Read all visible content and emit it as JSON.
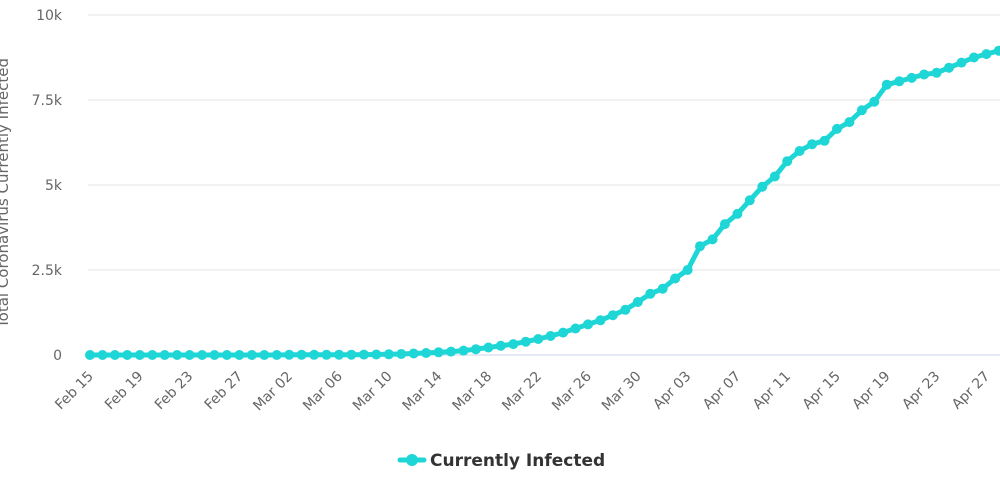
{
  "chart_data": {
    "type": "line",
    "title": "",
    "ylabel": "Total Coronavirus Currently Infected",
    "xlabel": "",
    "ylim": [
      0,
      10000
    ],
    "y_ticks": [
      0,
      2500,
      5000,
      7500,
      10000
    ],
    "y_tick_labels": [
      "0",
      "2.5k",
      "5k",
      "7.5k",
      "10k"
    ],
    "x_start": "Feb 15",
    "x_tick_labels": [
      "Feb 15",
      "Feb 19",
      "Feb 23",
      "Feb 27",
      "Mar 02",
      "Mar 06",
      "Mar 10",
      "Mar 14",
      "Mar 18",
      "Mar 22",
      "Mar 26",
      "Mar 30",
      "Apr 03",
      "Apr 07",
      "Apr 11",
      "Apr 15",
      "Apr 19",
      "Apr 23",
      "Apr 27"
    ],
    "grid": true,
    "legend_position": "bottom-center",
    "series_color": "#1fd6d6",
    "grid_color": "#e6e6e6",
    "axis_color": "#ccd6eb",
    "series": [
      {
        "name": "Currently Infected",
        "x": [
          "Feb 15",
          "Feb 16",
          "Feb 17",
          "Feb 18",
          "Feb 19",
          "Feb 20",
          "Feb 21",
          "Feb 22",
          "Feb 23",
          "Feb 24",
          "Feb 25",
          "Feb 26",
          "Feb 27",
          "Feb 28",
          "Feb 29",
          "Mar 01",
          "Mar 02",
          "Mar 03",
          "Mar 04",
          "Mar 05",
          "Mar 06",
          "Mar 07",
          "Mar 08",
          "Mar 09",
          "Mar 10",
          "Mar 11",
          "Mar 12",
          "Mar 13",
          "Mar 14",
          "Mar 15",
          "Mar 16",
          "Mar 17",
          "Mar 18",
          "Mar 19",
          "Mar 20",
          "Mar 21",
          "Mar 22",
          "Mar 23",
          "Mar 24",
          "Mar 25",
          "Mar 26",
          "Mar 27",
          "Mar 28",
          "Mar 29",
          "Mar 30",
          "Mar 31",
          "Apr 01",
          "Apr 02",
          "Apr 03",
          "Apr 04",
          "Apr 05",
          "Apr 06",
          "Apr 07",
          "Apr 08",
          "Apr 09",
          "Apr 10",
          "Apr 11",
          "Apr 12",
          "Apr 13",
          "Apr 14",
          "Apr 15",
          "Apr 16",
          "Apr 17",
          "Apr 18",
          "Apr 19",
          "Apr 20",
          "Apr 21",
          "Apr 22",
          "Apr 23",
          "Apr 24",
          "Apr 25",
          "Apr 26",
          "Apr 27",
          "Apr 28",
          "Apr 29"
        ],
        "values": [
          0,
          0,
          0,
          0,
          0,
          0,
          0,
          0,
          0,
          0,
          0,
          0,
          0,
          0,
          0,
          0,
          5,
          5,
          5,
          5,
          8,
          10,
          12,
          15,
          20,
          30,
          45,
          60,
          80,
          100,
          130,
          170,
          220,
          270,
          320,
          390,
          470,
          560,
          660,
          780,
          900,
          1020,
          1170,
          1330,
          1560,
          1800,
          1950,
          2250,
          2500,
          3200,
          3400,
          3850,
          4150,
          4550,
          4950,
          5250,
          5700,
          6000,
          6200,
          6300,
          6650,
          6850,
          7200,
          7450,
          7950,
          8050,
          8150,
          8250,
          8300,
          8450,
          8600,
          8750,
          8850,
          8950,
          9000
        ]
      }
    ]
  }
}
